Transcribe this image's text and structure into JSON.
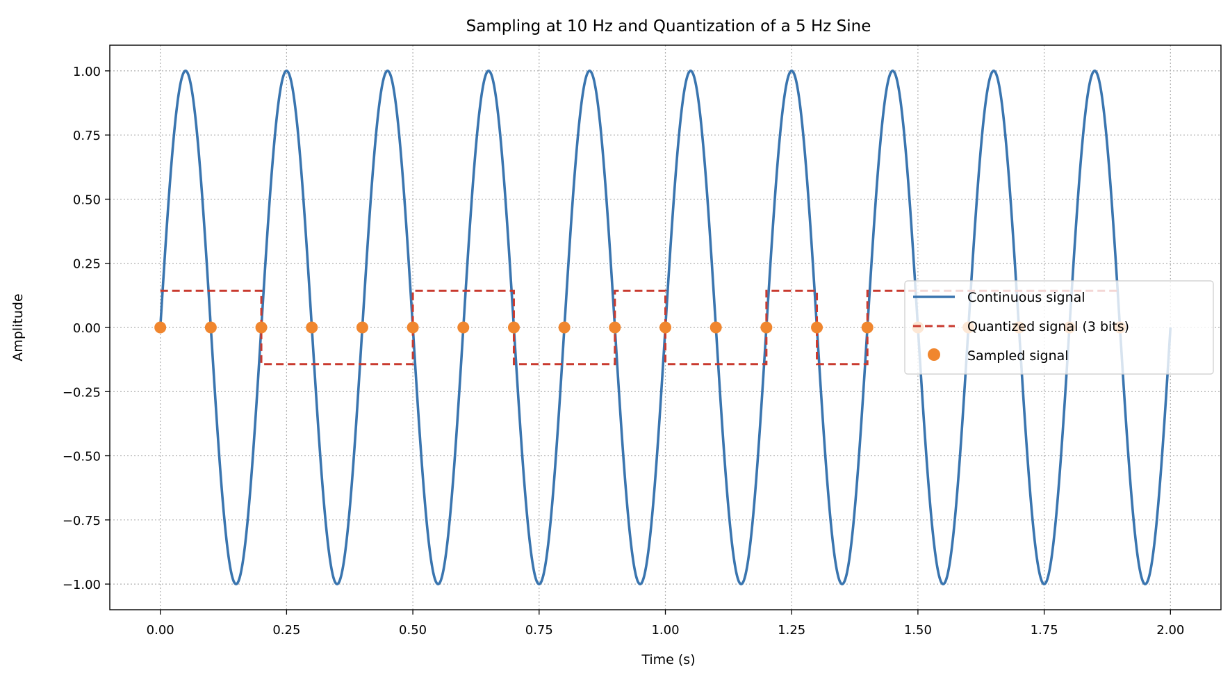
{
  "chart_data": {
    "type": "line",
    "title": "Sampling at 10 Hz and Quantization of a 5 Hz Sine",
    "xlabel": "Time (s)",
    "ylabel": "Amplitude",
    "xlim": [
      -0.1,
      2.1
    ],
    "ylim": [
      -1.1,
      1.1
    ],
    "xticks": [
      0.0,
      0.25,
      0.5,
      0.75,
      1.0,
      1.25,
      1.5,
      1.75,
      2.0
    ],
    "xtick_labels": [
      "0.00",
      "0.25",
      "0.50",
      "0.75",
      "1.00",
      "1.25",
      "1.50",
      "1.75",
      "2.00"
    ],
    "yticks": [
      -1.0,
      -0.75,
      -0.5,
      -0.25,
      0.0,
      0.25,
      0.5,
      0.75,
      1.0
    ],
    "ytick_labels": [
      "−1.00",
      "−0.75",
      "−0.50",
      "−0.25",
      "0.00",
      "0.25",
      "0.50",
      "0.75",
      "1.00"
    ],
    "grid": true,
    "grid_style": "dotted",
    "legend_position": "center-right",
    "colors": {
      "continuous": "#3a75af",
      "quantized": "#c93a2f",
      "sampled": "#f0862e"
    },
    "series": [
      {
        "name": "Continuous signal",
        "style": "solid",
        "function": "sin(2*pi*5*t)",
        "x_range": [
          0.0,
          2.0
        ]
      },
      {
        "name": "Quantized signal (3 bits)",
        "style": "dashed-step",
        "x": [
          0.0,
          0.1,
          0.2,
          0.3,
          0.4,
          0.5,
          0.6,
          0.7,
          0.8,
          0.9,
          1.0,
          1.1,
          1.2,
          1.3,
          1.4,
          1.5,
          1.6,
          1.7,
          1.8,
          1.9
        ],
        "y": [
          0.143,
          0.143,
          -0.143,
          -0.143,
          -0.143,
          0.143,
          0.143,
          -0.143,
          -0.143,
          0.143,
          -0.143,
          -0.143,
          0.143,
          -0.143,
          0.143,
          0.143,
          0.143,
          0.143,
          0.143,
          0.143
        ]
      },
      {
        "name": "Sampled signal",
        "style": "markers",
        "x": [
          0.0,
          0.1,
          0.2,
          0.3,
          0.4,
          0.5,
          0.6,
          0.7,
          0.8,
          0.9,
          1.0,
          1.1,
          1.2,
          1.3,
          1.4,
          1.5,
          1.6,
          1.7,
          1.8,
          1.9
        ],
        "y": [
          0,
          0,
          0,
          0,
          0,
          0,
          0,
          0,
          0,
          0,
          0,
          0,
          0,
          0,
          0,
          0,
          0,
          0,
          0,
          0
        ]
      }
    ]
  }
}
